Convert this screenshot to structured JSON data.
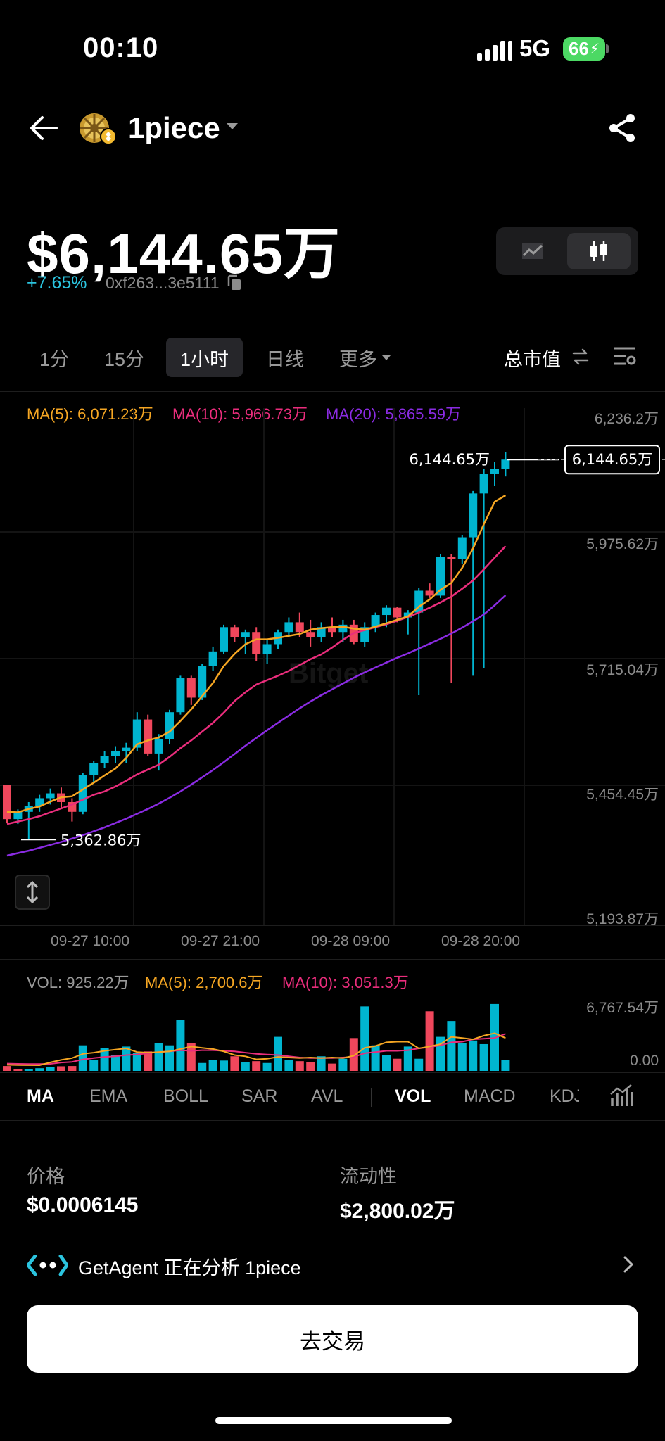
{
  "status_bar": {
    "time": "00:10",
    "network": "5G",
    "battery": "66"
  },
  "header": {
    "token_name": "1piece"
  },
  "summary": {
    "market_cap": "$6,144.65万",
    "change": "+7.65%",
    "address": "0xf263...3e5111"
  },
  "intervals": {
    "items": [
      "1分",
      "15分",
      "1小时",
      "日线"
    ],
    "more": "更多",
    "metric": "总市值"
  },
  "ma_labels": {
    "ma5": "MA(5): 6,071.23万",
    "ma10": "MA(10): 5,966.73万",
    "ma20": "MA(20): 5,865.59万"
  },
  "vol_labels": {
    "vol": "VOL: 925.22万",
    "ma5": "MA(5): 2,700.6万",
    "ma10": "MA(10): 3,051.3万"
  },
  "colors": {
    "up": "#00b5d0",
    "down": "#f0475c",
    "ma5": "#f5a623",
    "ma10": "#ea2d7c",
    "ma20": "#8a2be2",
    "change": "#2bc4df"
  },
  "chart_data": {
    "type": "candlestick",
    "y_axis_labels": [
      "6,236.2万",
      "5,975.62万",
      "5,715.04万",
      "5,454.45万",
      "5,193.87万"
    ],
    "ylim": [
      5193.87,
      6236.2
    ],
    "x_axis_labels": [
      "09-27 10:00",
      "09-27 21:00",
      "09-28 09:00",
      "09-28 20:00"
    ],
    "last_price_label": "6,144.65万",
    "last_price_tag": "6,144.65万",
    "low_marker_label": "5,362.86万",
    "last_value": 6144.65,
    "low_value": 5362.86,
    "candles": [
      [
        5475,
        5475,
        5398,
        5405
      ],
      [
        5405,
        5425,
        5395,
        5420
      ],
      [
        5420,
        5440,
        5362,
        5432
      ],
      [
        5432,
        5455,
        5420,
        5448
      ],
      [
        5448,
        5468,
        5435,
        5458
      ],
      [
        5458,
        5470,
        5428,
        5440
      ],
      [
        5440,
        5448,
        5400,
        5420
      ],
      [
        5420,
        5500,
        5415,
        5495
      ],
      [
        5495,
        5525,
        5480,
        5520
      ],
      [
        5520,
        5545,
        5510,
        5535
      ],
      [
        5535,
        5555,
        5520,
        5545
      ],
      [
        5545,
        5562,
        5520,
        5552
      ],
      [
        5552,
        5625,
        5545,
        5610
      ],
      [
        5610,
        5620,
        5535,
        5540
      ],
      [
        5540,
        5580,
        5505,
        5570
      ],
      [
        5570,
        5630,
        5560,
        5625
      ],
      [
        5625,
        5700,
        5620,
        5695
      ],
      [
        5695,
        5700,
        5640,
        5655
      ],
      [
        5655,
        5725,
        5650,
        5720
      ],
      [
        5720,
        5760,
        5710,
        5750
      ],
      [
        5750,
        5805,
        5745,
        5800
      ],
      [
        5800,
        5805,
        5770,
        5780
      ],
      [
        5780,
        5795,
        5745,
        5790
      ],
      [
        5790,
        5800,
        5730,
        5745
      ],
      [
        5745,
        5775,
        5725,
        5765
      ],
      [
        5765,
        5795,
        5755,
        5790
      ],
      [
        5790,
        5820,
        5780,
        5810
      ],
      [
        5810,
        5830,
        5780,
        5790
      ],
      [
        5790,
        5815,
        5760,
        5780
      ],
      [
        5780,
        5810,
        5770,
        5800
      ],
      [
        5800,
        5820,
        5780,
        5790
      ],
      [
        5790,
        5815,
        5770,
        5805
      ],
      [
        5805,
        5815,
        5765,
        5770
      ],
      [
        5770,
        5810,
        5760,
        5800
      ],
      [
        5800,
        5830,
        5790,
        5825
      ],
      [
        5825,
        5845,
        5800,
        5840
      ],
      [
        5840,
        5842,
        5810,
        5820
      ],
      [
        5820,
        5835,
        5785,
        5830
      ],
      [
        5830,
        5880,
        5660,
        5875
      ],
      [
        5875,
        5890,
        5860,
        5865
      ],
      [
        5865,
        5950,
        5860,
        5945
      ],
      [
        5945,
        5950,
        5685,
        5940
      ],
      [
        5940,
        5990,
        5930,
        5985
      ],
      [
        5985,
        6080,
        5700,
        6075
      ],
      [
        6075,
        6125,
        5715,
        6115
      ],
      [
        6115,
        6140,
        6090,
        6125
      ],
      [
        6125,
        6160,
        6110,
        6144.65
      ]
    ],
    "ma5": [
      5420,
      5419,
      5426,
      5431,
      5441,
      5450,
      5452,
      5466,
      5480,
      5495,
      5509,
      5531,
      5559,
      5567,
      5573,
      5585,
      5607,
      5631,
      5658,
      5685,
      5720,
      5745,
      5765,
      5775,
      5775,
      5778,
      5782,
      5786,
      5795,
      5798,
      5800,
      5801,
      5797,
      5795,
      5801,
      5808,
      5815,
      5822,
      5842,
      5857,
      5877,
      5891,
      5922,
      5962,
      6012,
      6058,
      6071.23
    ],
    "ma10": [
      5395,
      5400,
      5405,
      5411,
      5419,
      5427,
      5435,
      5445,
      5455,
      5462,
      5472,
      5484,
      5497,
      5507,
      5517,
      5533,
      5551,
      5567,
      5585,
      5603,
      5624,
      5648,
      5666,
      5682,
      5691,
      5700,
      5710,
      5722,
      5734,
      5744,
      5758,
      5774,
      5788,
      5794,
      5800,
      5806,
      5813,
      5821,
      5830,
      5840,
      5851,
      5863,
      5879,
      5896,
      5919,
      5943,
      5966.73
    ],
    "ma20": [
      5330,
      5335,
      5340,
      5346,
      5352,
      5358,
      5365,
      5372,
      5380,
      5388,
      5397,
      5406,
      5416,
      5426,
      5437,
      5449,
      5462,
      5476,
      5491,
      5506,
      5522,
      5539,
      5556,
      5572,
      5588,
      5603,
      5618,
      5633,
      5647,
      5660,
      5672,
      5684,
      5696,
      5707,
      5717,
      5727,
      5737,
      5746,
      5756,
      5766,
      5776,
      5787,
      5799,
      5812,
      5826,
      5845,
      5865.59
    ],
    "volume": {
      "y_axis_labels": [
        "6,767.54万",
        "0.00"
      ],
      "ylim": [
        0,
        6767.54
      ],
      "bars": [
        400,
        150,
        120,
        220,
        300,
        380,
        400,
        2100,
        900,
        1900,
        1300,
        2000,
        1500,
        1600,
        2300,
        2100,
        4200,
        2300,
        650,
        900,
        850,
        1200,
        700,
        800,
        650,
        2800,
        900,
        800,
        700,
        1200,
        600,
        1000,
        2700,
        5300,
        2100,
        1300,
        1000,
        2000,
        1000,
        4900,
        2800,
        4100,
        2300,
        2500,
        2200,
        5500,
        925.22
      ],
      "ma5": [
        500,
        480,
        470,
        460,
        700,
        900,
        1050,
        1400,
        1500,
        1650,
        1750,
        1850,
        1550,
        1500,
        1550,
        1600,
        1800,
        2000,
        1900,
        1800,
        1600,
        1300,
        1200,
        950,
        1000,
        1150,
        1100,
        1050,
        1100,
        1050,
        1100,
        1050,
        1250,
        1900,
        2050,
        2350,
        2400,
        2400,
        1850,
        2000,
        2200,
        2800,
        2700,
        2600,
        2900,
        3100,
        2700.6
      ],
      "ma10": [
        600,
        580,
        560,
        560,
        580,
        690,
        740,
        940,
        1050,
        1150,
        1200,
        1300,
        1350,
        1450,
        1550,
        1600,
        1700,
        1650,
        1700,
        1700,
        1650,
        1600,
        1500,
        1400,
        1350,
        1300,
        1200,
        1100,
        1050,
        1050,
        1050,
        1100,
        1150,
        1450,
        1550,
        1650,
        1650,
        1700,
        1850,
        1950,
        2100,
        2350,
        2400,
        2600,
        2650,
        2700,
        3051.3
      ],
      "dir": [
        0,
        0,
        1,
        1,
        1,
        0,
        0,
        1,
        1,
        1,
        1,
        1,
        1,
        0,
        1,
        1,
        1,
        0,
        1,
        1,
        1,
        0,
        1,
        0,
        1,
        1,
        1,
        0,
        0,
        1,
        0,
        1,
        0,
        1,
        1,
        1,
        0,
        1,
        1,
        0,
        1,
        1,
        1,
        1,
        1,
        1,
        1
      ]
    }
  },
  "indicators": {
    "main": [
      "MA",
      "EMA",
      "BOLL",
      "SAR",
      "AVL"
    ],
    "sub": [
      "VOL",
      "MACD",
      "KDJ"
    ]
  },
  "info": {
    "price_label": "价格",
    "price_value": "$0.0006145",
    "liquidity_label": "流动性",
    "liquidity_value": "$2,800.02万"
  },
  "agent": {
    "text": "GetAgent 正在分析 1piece"
  },
  "cta": {
    "label": "去交易"
  }
}
